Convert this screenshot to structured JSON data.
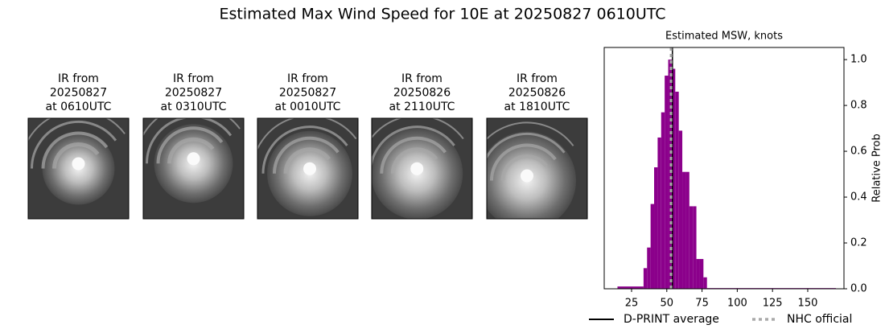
{
  "title": "Estimated Max Wind Speed for 10E at 20250827 0610UTC",
  "images": [
    {
      "caption": [
        "IR from",
        "20250827",
        "at 0610UTC"
      ]
    },
    {
      "caption": [
        "IR from",
        "20250827",
        "at 0310UTC"
      ]
    },
    {
      "caption": [
        "IR from",
        "20250827",
        "at 0010UTC"
      ]
    },
    {
      "caption": [
        "IR from",
        "20250826",
        "at 2110UTC"
      ]
    },
    {
      "caption": [
        "IR from",
        "20250826",
        "at 1810UTC"
      ]
    }
  ],
  "chart_data": {
    "type": "histogram",
    "title": "Estimated MSW, knots",
    "ylabel": "Relative Prob",
    "bins": [
      15,
      33.5,
      36,
      38.5,
      41,
      43.5,
      46,
      48.5,
      51,
      53.5,
      56,
      58.5,
      61,
      63.5,
      66,
      68.5,
      71,
      73.5,
      76,
      78.5,
      170
    ],
    "values": [
      0.01,
      0.09,
      0.18,
      0.37,
      0.53,
      0.66,
      0.77,
      0.93,
      1.0,
      0.96,
      0.86,
      0.69,
      0.51,
      0.51,
      0.36,
      0.36,
      0.13,
      0.13,
      0.05,
      0.003
    ],
    "color": "#8b008b",
    "xlim": [
      5.6,
      175.7
    ],
    "ylim": [
      0,
      1.053
    ],
    "xticks": [
      25,
      50,
      75,
      100,
      125,
      150
    ],
    "yticks": [
      {
        "value": 0,
        "label": "0.0"
      },
      {
        "value": 0.2,
        "label": "0.2"
      },
      {
        "value": 0.4,
        "label": "0.4"
      },
      {
        "value": 0.6,
        "label": "0.6"
      },
      {
        "value": 0.8,
        "label": "0.8"
      },
      {
        "value": 1.0,
        "label": "1.0"
      }
    ],
    "lines": [
      {
        "name": "D-PRINT average",
        "value": 54,
        "color": "#000000",
        "style": "solid"
      },
      {
        "name": "NHC official",
        "value": 53,
        "color": "#aaaaaa",
        "style": "dotted"
      }
    ],
    "legend": "lower center"
  }
}
